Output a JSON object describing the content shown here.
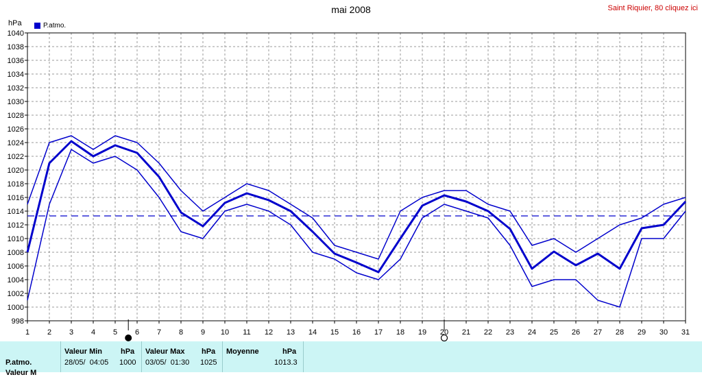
{
  "header": {
    "title": "mai 2008",
    "station_link": "Saint Riquier, 80 cliquez ici",
    "unit_label": "hPa"
  },
  "legend": {
    "label": "P.atmo.",
    "color": "#0000cc"
  },
  "chart_data": {
    "type": "line",
    "title": "mai 2008",
    "ylabel": "hPa",
    "xlabel": "",
    "ylim": [
      998,
      1040
    ],
    "y_ticks": [
      998,
      1000,
      1002,
      1004,
      1006,
      1008,
      1010,
      1012,
      1014,
      1016,
      1018,
      1020,
      1022,
      1024,
      1026,
      1028,
      1030,
      1032,
      1034,
      1036,
      1038,
      1040
    ],
    "x": [
      1,
      2,
      3,
      4,
      5,
      6,
      7,
      8,
      9,
      10,
      11,
      12,
      13,
      14,
      15,
      16,
      17,
      18,
      19,
      20,
      21,
      22,
      23,
      24,
      25,
      26,
      27,
      28,
      29,
      30,
      31
    ],
    "grid": true,
    "series": [
      {
        "name": "P.atmo.",
        "role": "max",
        "values": [
          1015,
          1024,
          1025,
          1023,
          1025,
          1024,
          1021,
          1017,
          1014,
          1016,
          1018,
          1017,
          1015,
          1013,
          1009,
          1008,
          1007,
          1014,
          1016,
          1017,
          1017,
          1015,
          1014,
          1009,
          1010,
          1008,
          1010,
          1012,
          1013,
          1015,
          1016
        ]
      },
      {
        "name": "P.atmo.",
        "role": "mean",
        "values": [
          1008,
          1021,
          1024.2,
          1022,
          1023.6,
          1022.5,
          1019,
          1013.8,
          1011.8,
          1015.2,
          1016.6,
          1015.6,
          1014,
          1011,
          1007.8,
          1006.5,
          1005.1,
          1010,
          1014.8,
          1016.3,
          1015.4,
          1014,
          1011.4,
          1005.6,
          1008.1,
          1006.1,
          1007.8,
          1005.6,
          1011.5,
          1012,
          1015.4
        ]
      },
      {
        "name": "P.atmo.",
        "role": "min",
        "values": [
          1001,
          1015,
          1023,
          1021,
          1022,
          1020,
          1016,
          1011,
          1010,
          1014,
          1015,
          1014,
          1012,
          1008,
          1007,
          1005,
          1004,
          1007,
          1013,
          1015,
          1014,
          1013,
          1009,
          1003,
          1004,
          1004,
          1001,
          1000,
          1010,
          1010,
          1014
        ]
      }
    ],
    "reference_line": {
      "value": 1013.3,
      "style": "dashed"
    },
    "moon_phases": [
      {
        "day": 5.6,
        "phase": "new-moon"
      },
      {
        "day": 20,
        "phase": "full-moon"
      }
    ]
  },
  "stats_table": {
    "row_label": "P.atmo.",
    "row2_label": "Valeur M",
    "min_header": "Valeur Min",
    "min_unit": "hPa",
    "min_date": "28/05/  04:05",
    "min_value": "1000",
    "max_header": "Valeur Max",
    "max_unit": "hPa",
    "max_date": "03/05/  01:30",
    "max_value": "1025",
    "mean_header": "Moyenne",
    "mean_unit": "hPa",
    "mean_value": "1013.3"
  }
}
